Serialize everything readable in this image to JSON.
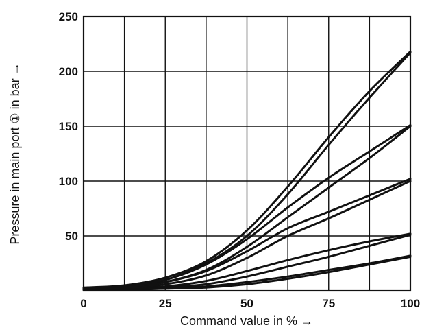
{
  "chart_data": {
    "type": "line",
    "title": "",
    "xlabel": "Command value in % →",
    "ylabel": "Pressure in main port ① in bar →",
    "xlim": [
      0,
      100
    ],
    "ylim": [
      0,
      250
    ],
    "x_ticks": [
      0,
      25,
      50,
      75,
      100
    ],
    "y_ticks": [
      50,
      100,
      150,
      200,
      250
    ],
    "x_tick_labels": [
      "0",
      "25",
      "50",
      "75",
      "100"
    ],
    "y_tick_labels": [
      "50",
      "100",
      "150",
      "200",
      "250"
    ],
    "x_grid_step": 12.5,
    "y_grid_step": 50,
    "grid": true,
    "legend": "none",
    "series": [
      {
        "x": [
          0,
          12.5,
          25,
          37.5,
          50,
          62.5,
          75,
          87.5,
          100
        ],
        "values": [
          3,
          5,
          12,
          27,
          55,
          95,
          140,
          182,
          218
        ]
      },
      {
        "x": [
          0,
          12.5,
          25,
          37.5,
          50,
          62.5,
          75,
          87.5,
          100
        ],
        "values": [
          2,
          4,
          10,
          25,
          50,
          88,
          133,
          176,
          217
        ]
      },
      {
        "x": [
          0,
          12.5,
          25,
          37.5,
          50,
          62.5,
          75,
          87.5,
          100
        ],
        "values": [
          2,
          4,
          10,
          24,
          47,
          76,
          103,
          127,
          151
        ]
      },
      {
        "x": [
          0,
          12.5,
          25,
          37.5,
          50,
          62.5,
          75,
          87.5,
          100
        ],
        "values": [
          1,
          3,
          8,
          19,
          40,
          67,
          94,
          121,
          150
        ]
      },
      {
        "x": [
          0,
          12.5,
          25,
          37.5,
          50,
          62.5,
          75,
          87.5,
          100
        ],
        "values": [
          2,
          3,
          8,
          18,
          36,
          57,
          72,
          87,
          102
        ]
      },
      {
        "x": [
          0,
          12.5,
          25,
          37.5,
          50,
          62.5,
          75,
          87.5,
          100
        ],
        "values": [
          1,
          2,
          6,
          14,
          30,
          50,
          66,
          83,
          100
        ]
      },
      {
        "x": [
          0,
          12.5,
          25,
          37.5,
          50,
          62.5,
          75,
          87.5,
          100
        ],
        "values": [
          1,
          2,
          4,
          9,
          18,
          28,
          37,
          45,
          52
        ]
      },
      {
        "x": [
          0,
          12.5,
          25,
          37.5,
          50,
          62.5,
          75,
          87.5,
          100
        ],
        "values": [
          1,
          1,
          3,
          6,
          13,
          22,
          31,
          41,
          51
        ]
      },
      {
        "x": [
          0,
          12.5,
          25,
          37.5,
          50,
          62.5,
          75,
          87.5,
          100
        ],
        "values": [
          1,
          1,
          2,
          4,
          8,
          13,
          19,
          25,
          32
        ]
      },
      {
        "x": [
          0,
          12.5,
          25,
          37.5,
          50,
          62.5,
          75,
          87.5,
          100
        ],
        "values": [
          1,
          1,
          2,
          3,
          6,
          11,
          17,
          24,
          31
        ]
      }
    ]
  }
}
